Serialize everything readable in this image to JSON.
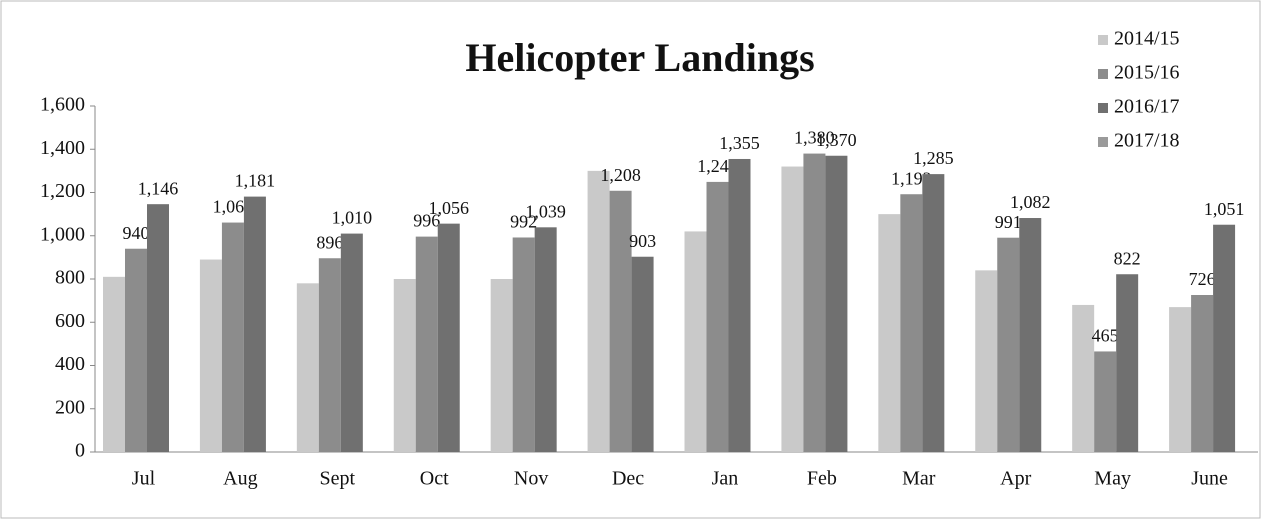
{
  "chart_data": {
    "type": "bar",
    "title": "Helicopter Landings",
    "categories": [
      "Jul",
      "Aug",
      "Sept",
      "Oct",
      "Nov",
      "Dec",
      "Jan",
      "Feb",
      "Mar",
      "Apr",
      "May",
      "June"
    ],
    "series": [
      {
        "name": "2014/15",
        "color": "#c9c9c9",
        "values": [
          810,
          890,
          780,
          800,
          800,
          1300,
          1020,
          1320,
          1100,
          840,
          680,
          670
        ]
      },
      {
        "name": "2015/16",
        "color": "#8c8c8c",
        "values": [
          940,
          1061,
          896,
          996,
          992,
          1208,
          1249,
          1380,
          1192,
          991,
          465,
          726
        ],
        "value_labels": [
          "940",
          "1,061",
          "896",
          "996",
          "992",
          "1,208",
          "1,249",
          "1,380",
          "1,192",
          "991",
          "465",
          "726"
        ]
      },
      {
        "name": "2016/17",
        "color": "#707070",
        "values": [
          1146,
          1181,
          1010,
          1056,
          1039,
          903,
          1355,
          1370,
          1285,
          1082,
          822,
          1051
        ],
        "value_labels": [
          "1,146",
          "1,181",
          "1,010",
          "1,056",
          "1,039",
          "903",
          "1,355",
          "1,370",
          "1,285",
          "1,082",
          "822",
          "1,051"
        ]
      },
      {
        "name": "2017/18",
        "color": "#9a9a9a",
        "values": [
          null,
          null,
          null,
          null,
          null,
          null,
          null,
          null,
          null,
          null,
          null,
          null
        ]
      }
    ],
    "ylim": [
      0,
      1600
    ],
    "yticks": [
      0,
      200,
      400,
      600,
      800,
      {
        "value": 1000,
        "label": "1,000"
      },
      {
        "value": 1200,
        "label": "1,200"
      },
      {
        "value": 1400,
        "label": "1,400"
      },
      {
        "value": 1600,
        "label": "1,600"
      }
    ],
    "legend": "top-right"
  }
}
